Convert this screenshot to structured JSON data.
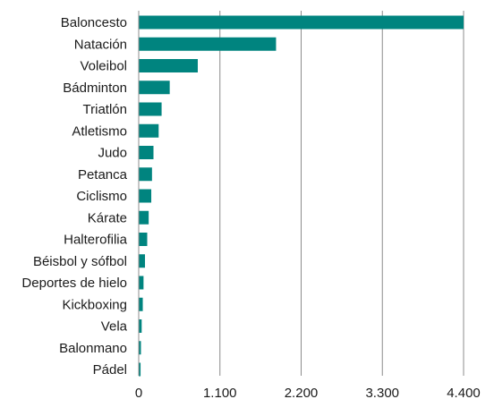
{
  "chart_data": {
    "type": "bar",
    "orientation": "horizontal",
    "color": "#00847f",
    "grid": "vertical",
    "categories": [
      "Baloncesto",
      "Natación",
      "Voleibol",
      "Bádminton",
      "Triatlón",
      "Atletismo",
      "Judo",
      "Petanca",
      "Ciclismo",
      "Kárate",
      "Halterofilia",
      "Béisbol y sófbol",
      "Deportes de hielo",
      "Kickboxing",
      "Vela",
      "Balonmano",
      "Pádel"
    ],
    "values": [
      4400,
      1860,
      800,
      420,
      310,
      270,
      200,
      180,
      170,
      135,
      115,
      85,
      65,
      55,
      40,
      30,
      25
    ],
    "xlim": [
      0,
      4400
    ],
    "xticks": [
      0,
      1100,
      2200,
      3300,
      4400
    ],
    "xtick_labels": [
      "0",
      "1.100",
      "2.200",
      "3.300",
      "4.400"
    ]
  }
}
